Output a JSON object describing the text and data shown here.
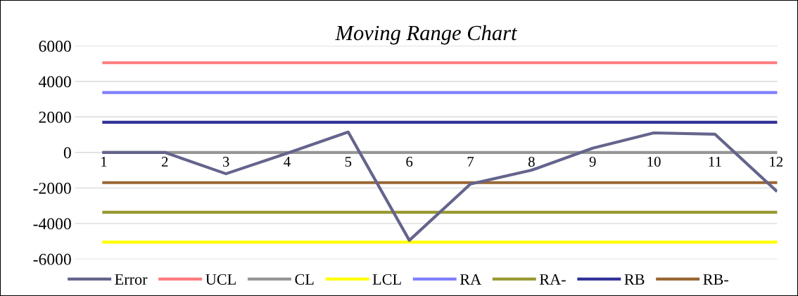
{
  "chart_data": {
    "type": "line",
    "title": "Moving Range Chart",
    "categories": [
      "1",
      "2",
      "3",
      "4",
      "5",
      "6",
      "7",
      "8",
      "9",
      "10",
      "11",
      "12"
    ],
    "series": [
      {
        "name": "Error",
        "color": "#64648c",
        "values": [
          0,
          0,
          -1200,
          -50,
          1150,
          -4950,
          -1780,
          -1000,
          240,
          1100,
          1030,
          -2150
        ]
      },
      {
        "name": "UCL",
        "color": "#ff7c80",
        "values": [
          5050,
          5050,
          5050,
          5050,
          5050,
          5050,
          5050,
          5050,
          5050,
          5050,
          5050,
          5050
        ]
      },
      {
        "name": "CL",
        "color": "#969696",
        "values": [
          0,
          0,
          0,
          0,
          0,
          0,
          0,
          0,
          0,
          0,
          0,
          0
        ]
      },
      {
        "name": "LCL",
        "color": "#ffff00",
        "values": [
          -5050,
          -5050,
          -5050,
          -5050,
          -5050,
          -5050,
          -5050,
          -5050,
          -5050,
          -5050,
          -5050,
          -5050
        ]
      },
      {
        "name": "RA",
        "color": "#7f7fff",
        "values": [
          3370,
          3370,
          3370,
          3370,
          3370,
          3370,
          3370,
          3370,
          3370,
          3370,
          3370,
          3370
        ]
      },
      {
        "name": "RA-",
        "color": "#999933",
        "values": [
          -3370,
          -3370,
          -3370,
          -3370,
          -3370,
          -3370,
          -3370,
          -3370,
          -3370,
          -3370,
          -3370,
          -3370
        ]
      },
      {
        "name": "RB",
        "color": "#333399",
        "values": [
          1700,
          1700,
          1700,
          1700,
          1700,
          1700,
          1700,
          1700,
          1700,
          1700,
          1700,
          1700
        ]
      },
      {
        "name": "RB-",
        "color": "#996633",
        "values": [
          -1700,
          -1700,
          -1700,
          -1700,
          -1700,
          -1700,
          -1700,
          -1700,
          -1700,
          -1700,
          -1700,
          -1700
        ]
      }
    ],
    "ylim": [
      -6000,
      6000
    ],
    "yticks": [
      -6000,
      -4000,
      -2000,
      0,
      2000,
      4000,
      6000
    ],
    "grid": "y",
    "legend": "bottom",
    "marker": "none",
    "line_style": "solid"
  }
}
